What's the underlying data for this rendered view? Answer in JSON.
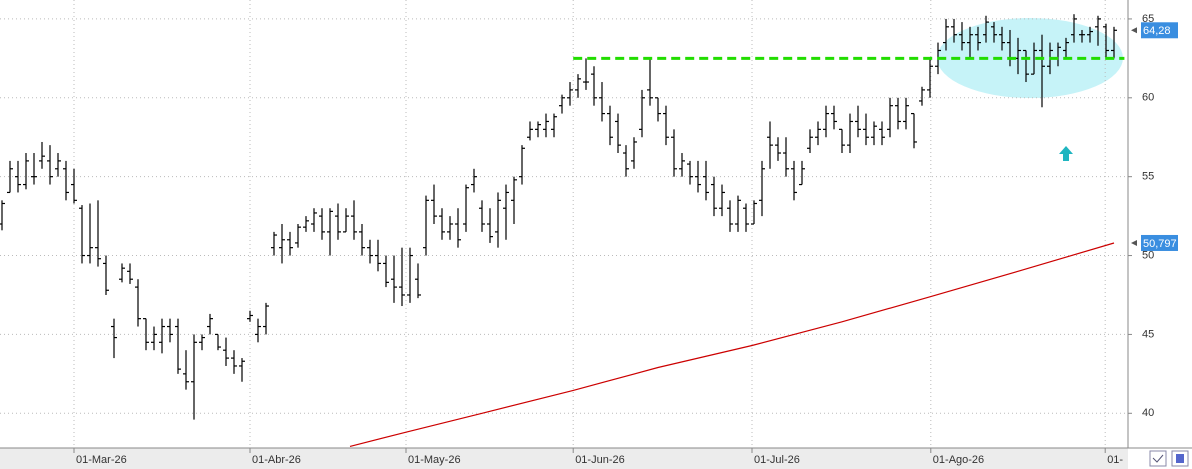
{
  "chart_data": {
    "type": "ohlc",
    "ylim": [
      37.8,
      66.2
    ],
    "yticks": [
      40,
      45,
      50,
      55,
      60,
      65
    ],
    "xlim": [
      -0.25,
      140.75
    ],
    "xticks": [
      {
        "value": 9,
        "label": "01-Mar-26"
      },
      {
        "value": 31,
        "label": "01-Abr-26"
      },
      {
        "value": 50.5,
        "label": "01-May-26"
      },
      {
        "value": 71.4,
        "label": "01-Jun-26"
      },
      {
        "value": 93.75,
        "label": "01-Jul-26"
      },
      {
        "value": 116.1,
        "label": "01-Ago-26"
      },
      {
        "value": 137.9,
        "label": "01-"
      }
    ],
    "grid": true,
    "color": "#000000",
    "ohlc": [
      [
        52,
        53.5,
        51.6,
        53.3
      ],
      [
        54,
        56,
        54,
        55.5
      ],
      [
        55,
        56,
        54,
        54.5
      ],
      [
        54.5,
        56.5,
        54.2,
        56
      ],
      [
        55,
        56.5,
        54.5,
        55
      ],
      [
        56,
        57.2,
        55.5,
        56.3
      ],
      [
        56,
        57,
        54.5,
        55
      ],
      [
        55.5,
        56.5,
        55,
        56
      ],
      [
        55.5,
        56,
        53.5,
        54
      ],
      [
        54.5,
        55.5,
        53.3,
        53.5
      ],
      [
        53,
        53.2,
        49.5,
        50
      ],
      [
        50,
        53.3,
        49.5,
        50.5
      ],
      [
        50.5,
        53.5,
        49.3,
        49.8
      ],
      [
        49.5,
        50,
        47.5,
        47.8
      ],
      [
        45.5,
        46,
        43.5,
        44.8
      ],
      [
        48.5,
        49.5,
        48.3,
        49.2
      ],
      [
        49,
        49.5,
        48.2,
        48.5
      ],
      [
        48,
        48.5,
        45.5,
        46
      ],
      [
        46,
        46,
        44,
        44.5
      ],
      [
        44.5,
        45.5,
        44,
        45
      ],
      [
        44.5,
        46,
        43.8,
        45.5
      ],
      [
        45.5,
        46,
        44.5,
        45
      ],
      [
        45.5,
        46,
        42.5,
        42.8
      ],
      [
        42.5,
        44,
        41.5,
        42
      ],
      [
        42,
        45,
        39.6,
        44.5
      ],
      [
        44.5,
        45,
        44,
        44.8
      ],
      [
        45.5,
        46.3,
        45,
        46
      ],
      [
        45,
        45,
        44,
        44.2
      ],
      [
        44,
        44.8,
        43,
        43.5
      ],
      [
        43.5,
        44,
        42.5,
        43
      ],
      [
        43,
        43.5,
        42,
        43.3
      ],
      [
        46,
        46.5,
        45.8,
        46.2
      ],
      [
        45,
        46,
        44.5,
        45.5
      ],
      [
        45.5,
        47,
        45,
        46.8
      ],
      [
        50.5,
        51.5,
        50,
        51.3
      ],
      [
        50.5,
        52,
        49.5,
        51
      ],
      [
        51,
        51.5,
        50,
        50.5
      ],
      [
        50.8,
        52,
        50.5,
        51.8
      ],
      [
        51.8,
        52.5,
        51.5,
        52.2
      ],
      [
        52,
        53,
        51.5,
        52.7
      ],
      [
        52.5,
        53,
        51,
        51.5
      ],
      [
        51.5,
        53,
        50,
        52.8
      ],
      [
        52.5,
        53.3,
        51,
        51.5
      ],
      [
        51.5,
        53,
        51.5,
        52.5
      ],
      [
        52.5,
        53.5,
        51,
        51.5
      ],
      [
        51.5,
        52,
        50,
        50.5
      ],
      [
        50.5,
        51,
        49.5,
        50
      ],
      [
        50,
        51,
        49,
        49.5
      ],
      [
        49.5,
        50,
        48,
        48.3
      ],
      [
        48.5,
        50,
        47,
        48
      ],
      [
        48,
        50.5,
        46.8,
        47.5
      ],
      [
        47.5,
        50.5,
        47,
        50
      ],
      [
        48.5,
        49.5,
        47.3,
        47.5
      ],
      [
        50.5,
        53.8,
        50,
        53.5
      ],
      [
        53.5,
        54.5,
        52,
        52.5
      ],
      [
        52.5,
        53,
        51,
        51.5
      ],
      [
        51.5,
        52.5,
        51,
        52
      ],
      [
        52,
        53,
        50.5,
        51
      ],
      [
        52,
        54.5,
        51.5,
        54.3
      ],
      [
        54.5,
        55.5,
        54,
        55
      ],
      [
        53,
        53.5,
        51.5,
        52
      ],
      [
        52,
        53,
        50.8,
        51.2
      ],
      [
        51.5,
        54,
        50.5,
        53.5
      ],
      [
        53,
        54.5,
        51,
        54
      ],
      [
        53.5,
        55,
        52,
        54.8
      ],
      [
        55,
        57,
        54.5,
        56.8
      ],
      [
        57.5,
        58.5,
        57.3,
        58
      ],
      [
        58,
        58.5,
        57.5,
        58.3
      ],
      [
        58,
        59,
        57.5,
        58.5
      ],
      [
        58,
        59,
        57.5,
        58.8
      ],
      [
        59.5,
        60.2,
        59,
        60
      ],
      [
        60,
        61,
        59.5,
        60.5
      ],
      [
        60.5,
        61.5,
        60,
        61.2
      ],
      [
        61,
        62.5,
        60.5,
        61
      ],
      [
        61.5,
        62,
        59.5,
        60
      ],
      [
        60,
        61,
        58.5,
        59
      ],
      [
        59,
        59.5,
        57,
        57.5
      ],
      [
        58.5,
        59,
        56.5,
        57
      ],
      [
        56.5,
        57,
        55,
        55.5
      ],
      [
        56,
        57.5,
        55.5,
        57.2
      ],
      [
        58,
        60.5,
        57.5,
        60
      ],
      [
        60.5,
        62.5,
        59.5,
        60
      ],
      [
        60,
        60,
        58.5,
        59
      ],
      [
        59,
        59.5,
        57,
        57.5
      ],
      [
        57.5,
        58,
        55,
        55.5
      ],
      [
        55.5,
        56.5,
        55,
        56
      ],
      [
        55.8,
        56,
        54.5,
        55
      ],
      [
        55,
        56,
        54,
        54.5
      ],
      [
        55,
        56,
        53.5,
        54
      ],
      [
        54.5,
        55,
        52.5,
        53
      ],
      [
        53,
        54.5,
        52.5,
        54
      ],
      [
        53,
        53.5,
        51.5,
        52
      ],
      [
        52,
        53.8,
        51.5,
        53.5
      ],
      [
        53,
        53.3,
        51.5,
        52
      ],
      [
        52,
        53.5,
        52,
        53.3
      ],
      [
        53.5,
        56,
        52.5,
        55.5
      ],
      [
        57.5,
        58.5,
        55.5,
        57
      ],
      [
        57,
        57.5,
        56,
        56.5
      ],
      [
        56.5,
        57.5,
        55,
        55.5
      ],
      [
        55.5,
        56,
        53.5,
        54
      ],
      [
        54.5,
        56,
        54.5,
        55.5
      ],
      [
        56.8,
        58,
        56.5,
        57.5
      ],
      [
        57.5,
        58.5,
        57,
        58
      ],
      [
        58,
        59.5,
        57.5,
        59
      ],
      [
        59,
        59.5,
        58,
        58.5
      ],
      [
        58,
        58,
        56.5,
        57
      ],
      [
        57,
        59,
        56.5,
        58.5
      ],
      [
        58.5,
        59.5,
        57.5,
        58
      ],
      [
        58,
        59,
        57,
        57.5
      ],
      [
        57.5,
        58.5,
        57,
        58.2
      ],
      [
        58,
        58.5,
        57,
        57.5
      ],
      [
        58,
        60,
        57.5,
        59.5
      ],
      [
        59.5,
        60,
        58,
        58.5
      ],
      [
        58.5,
        60,
        58,
        59.5
      ],
      [
        59,
        59,
        56.8,
        57.2
      ],
      [
        59.8,
        60.7,
        59.5,
        60.5
      ],
      [
        60.5,
        62.5,
        60,
        62
      ],
      [
        62,
        63.5,
        61.5,
        63
      ],
      [
        63.5,
        65,
        63,
        64.5
      ],
      [
        64.5,
        65,
        63.5,
        64
      ],
      [
        64,
        64.8,
        63,
        63.5
      ],
      [
        63.5,
        64.5,
        62.5,
        64
      ],
      [
        64,
        64.5,
        63,
        63.5
      ],
      [
        64,
        65.2,
        63.5,
        64.8
      ],
      [
        64.5,
        64.8,
        63.5,
        64
      ],
      [
        64,
        64.5,
        63,
        63.5
      ],
      [
        63.5,
        64.3,
        62,
        62.5
      ],
      [
        62.5,
        63.8,
        61.5,
        63
      ],
      [
        63,
        63,
        61,
        61.5
      ],
      [
        61.5,
        63.5,
        61.5,
        63
      ],
      [
        63,
        64,
        59.4,
        62
      ],
      [
        62,
        63.5,
        61.5,
        63
      ],
      [
        62.5,
        63.5,
        62,
        63.2
      ],
      [
        63,
        63.8,
        62.5,
        63.5
      ],
      [
        64,
        65.3,
        63.5,
        65
      ],
      [
        64,
        64.3,
        63.5,
        64
      ],
      [
        64,
        64.5,
        63.5,
        64.2
      ],
      [
        64.5,
        65.2,
        63.3,
        65
      ],
      [
        64.5,
        64.7,
        62.5,
        63
      ],
      [
        63,
        64.5,
        62.5,
        64.28
      ]
    ],
    "moving_average": {
      "color": "#cc0000",
      "x": [
        43.5,
        50.5,
        60,
        71.4,
        82,
        93.75,
        105,
        116.1,
        127,
        139
      ],
      "values": [
        37.9,
        38.8,
        40.0,
        41.45,
        42.9,
        44.3,
        45.8,
        47.4,
        49.0,
        50.797
      ]
    },
    "level": {
      "color": "#22dd00",
      "value": 62.5,
      "x": [
        71.4,
        140.3
      ]
    },
    "last_labels": [
      {
        "value": 64.28,
        "label": "64,28"
      },
      {
        "value": 50.797,
        "label": "50,797"
      }
    ],
    "label_color": "#3a8ee0"
  }
}
